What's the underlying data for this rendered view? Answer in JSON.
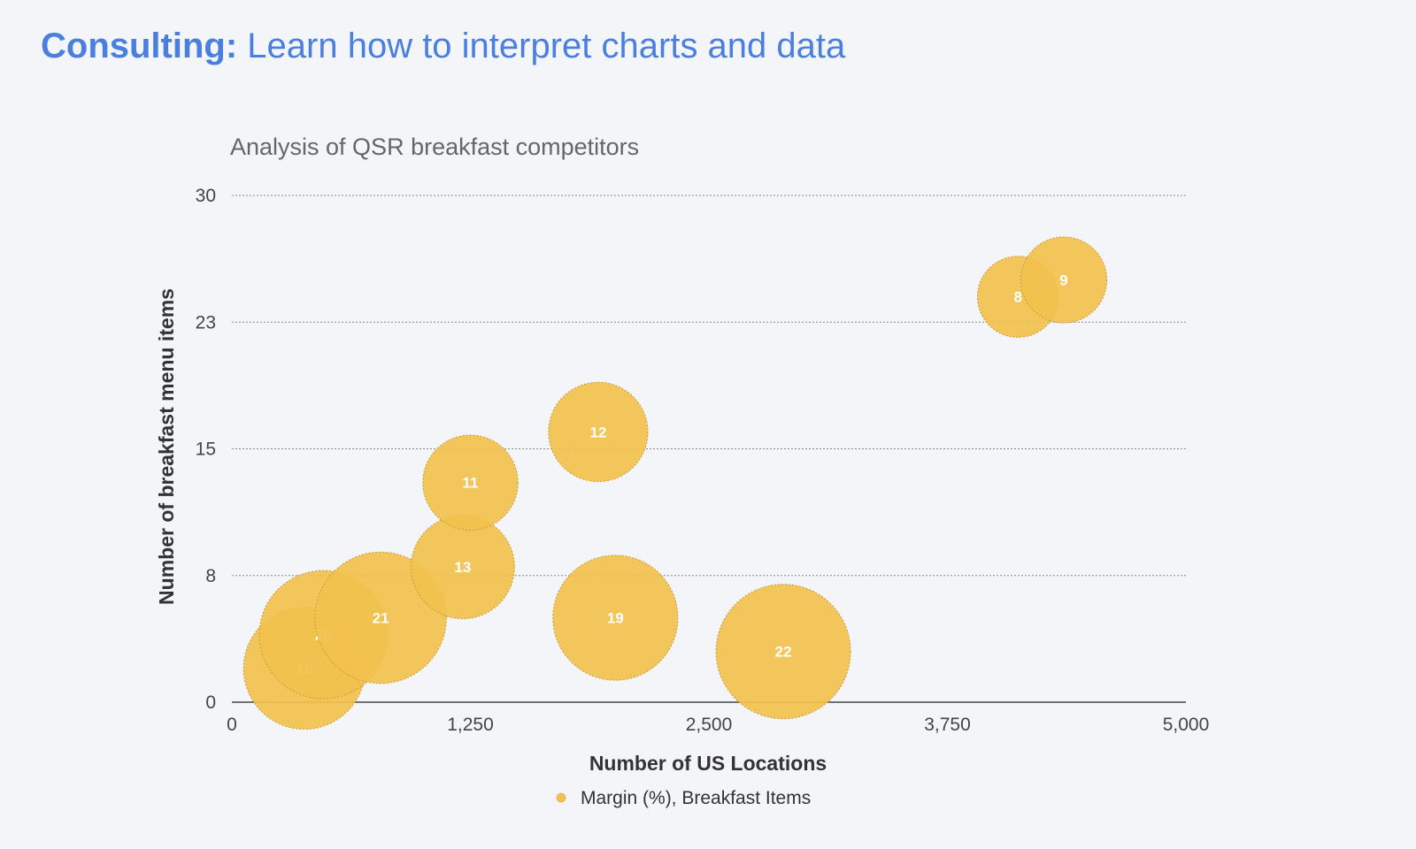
{
  "header": {
    "title_bold": "Consulting:",
    "title_rest": " Learn how to interpret charts and data"
  },
  "chart_data": {
    "type": "bubble",
    "title": "Analysis of QSR breakfast competitors",
    "xlabel": "Number of US Locations",
    "ylabel": "Number of breakfast menu items",
    "xlim": [
      0,
      5000
    ],
    "ylim": [
      0,
      30
    ],
    "xticks": [
      0,
      1250,
      2500,
      3750,
      5000
    ],
    "xtick_labels": [
      "0",
      "1,250",
      "2,500",
      "3,750",
      "5,000"
    ],
    "yticks": [
      0,
      7.5,
      15,
      22.5,
      30
    ],
    "ytick_labels": [
      "0",
      "8",
      "15",
      "23",
      "30"
    ],
    "grid": true,
    "legend_position": "bottom",
    "bubble_color": "#f2c14e",
    "series": [
      {
        "name": "Margin (%), Breakfast Items",
        "points": [
          {
            "x": 380,
            "y": 2,
            "size": 18,
            "label": "18"
          },
          {
            "x": 480,
            "y": 4,
            "size": 20,
            "label": "20"
          },
          {
            "x": 780,
            "y": 5,
            "size": 21,
            "label": "21"
          },
          {
            "x": 1210,
            "y": 8,
            "size": 13,
            "label": "13"
          },
          {
            "x": 1250,
            "y": 13,
            "size": 11,
            "label": "11"
          },
          {
            "x": 1920,
            "y": 16,
            "size": 12,
            "label": "12"
          },
          {
            "x": 2010,
            "y": 5,
            "size": 19,
            "label": "19"
          },
          {
            "x": 2890,
            "y": 3,
            "size": 22,
            "label": "22"
          },
          {
            "x": 4120,
            "y": 24,
            "size": 8,
            "label": "8"
          },
          {
            "x": 4360,
            "y": 25,
            "size": 9,
            "label": "9"
          }
        ]
      }
    ]
  }
}
